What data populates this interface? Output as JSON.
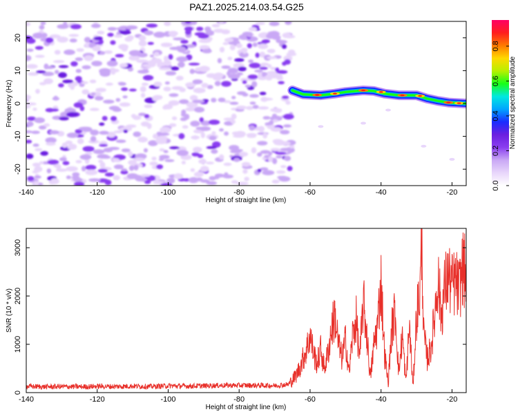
{
  "title": "PAZ1.2025.214.03.54.G25",
  "colors": {
    "snr_line": "#e8302a",
    "colormap": [
      "#ffffff",
      "#e8d6fb",
      "#c9a8f5",
      "#8a3ef0",
      "#6b1fe0",
      "#1a2cff",
      "#00a4ff",
      "#00e8e0",
      "#18ff18",
      "#b8f000",
      "#ffd800",
      "#ff7a00",
      "#ff1e1e",
      "#ff0064"
    ]
  },
  "chart_data": [
    {
      "type": "heatmap",
      "xlabel": "Height of straight line (km)",
      "ylabel": "Frequency (Hz)",
      "xlim": [
        -140,
        -16
      ],
      "ylim": [
        -25,
        25
      ],
      "xticks": [
        "-140",
        "-120",
        "-100",
        "-80",
        "-60",
        "-40",
        "-20"
      ],
      "yticks": [
        "-20",
        "-10",
        "0",
        "10",
        "20"
      ],
      "colorbar": {
        "label": "Normalized spectral amplitude",
        "range": [
          0,
          0.95
        ],
        "ticks": [
          "0.0",
          "0.2",
          "0.4",
          "0.6",
          "0.8"
        ]
      },
      "noise_region_x": [
        -140,
        -65
      ],
      "signal_trace": [
        {
          "x": -65,
          "f": 4.0
        },
        {
          "x": -62,
          "f": 2.8
        },
        {
          "x": -57,
          "f": 2.5
        },
        {
          "x": -53,
          "f": 3.0
        },
        {
          "x": -50,
          "f": 3.5
        },
        {
          "x": -45,
          "f": 4.0
        },
        {
          "x": -42,
          "f": 3.8
        },
        {
          "x": -39,
          "f": 3.0
        },
        {
          "x": -35,
          "f": 2.5
        },
        {
          "x": -30,
          "f": 2.5
        },
        {
          "x": -27,
          "f": 1.5
        },
        {
          "x": -24,
          "f": 0.8
        },
        {
          "x": -21,
          "f": 0.3
        },
        {
          "x": -16,
          "f": 0.0
        }
      ]
    },
    {
      "type": "line",
      "xlabel": "Height of straight line (km)",
      "ylabel": "SNR (10 * v/v)",
      "xlim": [
        -140,
        -16
      ],
      "ylim": [
        0,
        3400
      ],
      "xticks": [
        "-140",
        "-120",
        "-100",
        "-80",
        "-60",
        "-40",
        "-20"
      ],
      "yticks": [
        "0",
        "1000",
        "2000",
        "3000"
      ],
      "series": [
        {
          "x": [
            -140,
            -135,
            -130,
            -125,
            -120,
            -115,
            -110,
            -105,
            -100,
            -95,
            -90,
            -85,
            -80,
            -75,
            -70,
            -66,
            -64,
            -63,
            -62,
            -61,
            -60,
            -59,
            -58,
            -57,
            -56,
            -55,
            -54,
            -53,
            -52,
            -51,
            -50,
            -49,
            -48,
            -47,
            -46,
            -45,
            -44,
            -43,
            -42,
            -41,
            -40,
            -39,
            -38,
            -37,
            -36,
            -35,
            -34,
            -33,
            -32,
            -31,
            -30,
            -29,
            -28.5,
            -28,
            -27,
            -26,
            -25,
            -24,
            -23,
            -22,
            -21,
            -20,
            -19,
            -18,
            -17,
            -16
          ],
          "y": [
            130,
            120,
            125,
            120,
            130,
            125,
            135,
            125,
            140,
            135,
            140,
            150,
            150,
            150,
            145,
            170,
            350,
            500,
            700,
            900,
            1200,
            800,
            600,
            900,
            500,
            800,
            1300,
            1600,
            1000,
            700,
            1100,
            400,
            1200,
            1500,
            700,
            1900,
            1200,
            300,
            1000,
            1400,
            2300,
            800,
            200,
            1300,
            1700,
            400,
            1200,
            200,
            1400,
            100,
            1600,
            2100,
            3300,
            1200,
            700,
            900,
            1500,
            2400,
            1600,
            2200,
            2400,
            2200,
            2300,
            2100,
            2600,
            2400
          ]
        }
      ]
    }
  ]
}
